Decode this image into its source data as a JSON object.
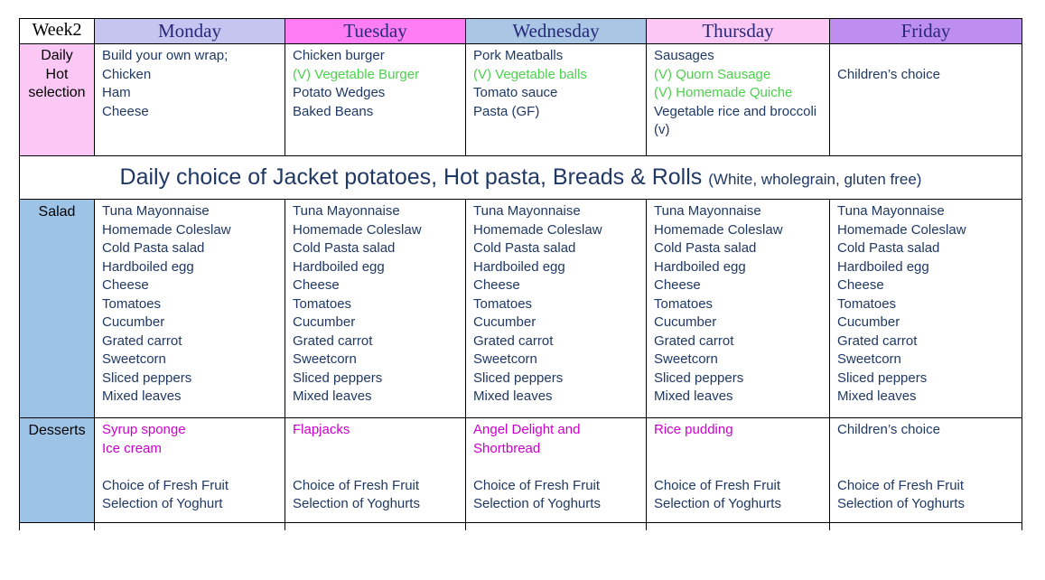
{
  "palette": {
    "border": "#000000",
    "header_text": "#28287a",
    "body_navy": "#1f3864",
    "veg_green": "#4ed14e",
    "dessert_magenta": "#cc00cc",
    "week_bg": "#ffffff",
    "hot_label_bg": "#fbc8f5",
    "side_label_bg": "#9dc3e6"
  },
  "header": {
    "week_label": "Week2",
    "days": [
      {
        "label": "Monday",
        "bg": "#c5c5f0"
      },
      {
        "label": "Tuesday",
        "bg": "#ff7df2"
      },
      {
        "label": "Wednesday",
        "bg": "#a9c7e5"
      },
      {
        "label": "Thursday",
        "bg": "#fbc8f5"
      },
      {
        "label": "Friday",
        "bg": "#bd8ef0"
      }
    ]
  },
  "rows": {
    "hot": {
      "label_lines": [
        "Daily",
        "Hot",
        "selection"
      ],
      "cells": [
        {
          "lines": [
            {
              "text": "Build your own wrap;",
              "color": "navy"
            },
            {
              "text": "Chicken",
              "color": "navy"
            },
            {
              "text": "Ham",
              "color": "navy"
            },
            {
              "text": "Cheese",
              "color": "navy"
            }
          ]
        },
        {
          "lines": [
            {
              "text": "Chicken burger",
              "color": "navy"
            },
            {
              "text": "(V) Vegetable Burger",
              "color": "green"
            },
            {
              "text": "Potato Wedges",
              "color": "navy"
            },
            {
              "text": "Baked Beans",
              "color": "navy"
            }
          ]
        },
        {
          "lines": [
            {
              "text": "Pork Meatballs",
              "color": "navy"
            },
            {
              "text": "(V) Vegetable balls",
              "color": "green"
            },
            {
              "text": "Tomato sauce",
              "color": "navy"
            },
            {
              "text": "Pasta (GF)",
              "color": "navy"
            }
          ]
        },
        {
          "lines": [
            {
              "text": "Sausages",
              "color": "navy"
            },
            {
              "text": "(V) Quorn Sausage",
              "color": "green"
            },
            {
              "text": "(V) Homemade Quiche",
              "color": "green"
            },
            {
              "text": "Vegetable rice and broccoli (v)",
              "color": "navy"
            }
          ]
        },
        {
          "lines": [
            {
              "text": "",
              "color": "navy"
            },
            {
              "text": "Children’s choice",
              "color": "navy"
            }
          ]
        }
      ]
    },
    "banner": {
      "main": "Daily choice of Jacket potatoes, Hot pasta, Breads & Rolls ",
      "note": "(White, wholegrain, gluten free)"
    },
    "salad": {
      "label": "Salad",
      "items": [
        "Tuna Mayonnaise",
        "Homemade Coleslaw",
        "Cold Pasta salad",
        "Hardboiled egg",
        "Cheese",
        "Tomatoes",
        "Cucumber",
        "Grated carrot",
        "Sweetcorn",
        "Sliced peppers",
        "Mixed leaves"
      ]
    },
    "desserts": {
      "label": "Desserts",
      "cells": [
        {
          "lines": [
            {
              "text": "Syrup sponge",
              "color": "magenta"
            },
            {
              "text": "Ice cream",
              "color": "magenta"
            },
            {
              "text": "",
              "color": "navy"
            },
            {
              "text": "Choice of Fresh Fruit",
              "color": "navy"
            },
            {
              "text": "Selection of Yoghurt",
              "color": "navy"
            }
          ]
        },
        {
          "lines": [
            {
              "text": "Flapjacks",
              "color": "magenta"
            },
            {
              "text": "",
              "color": "navy"
            },
            {
              "text": "",
              "color": "navy"
            },
            {
              "text": "Choice of Fresh Fruit",
              "color": "navy"
            },
            {
              "text": "Selection of Yoghurts",
              "color": "navy"
            }
          ]
        },
        {
          "lines": [
            {
              "text": "Angel Delight and Shortbread",
              "color": "magenta"
            },
            {
              "text": "",
              "color": "navy"
            },
            {
              "text": "Choice of Fresh Fruit",
              "color": "navy"
            },
            {
              "text": "Selection of Yoghurts",
              "color": "navy"
            }
          ]
        },
        {
          "lines": [
            {
              "text": "Rice pudding",
              "color": "magenta"
            },
            {
              "text": "",
              "color": "navy"
            },
            {
              "text": "",
              "color": "navy"
            },
            {
              "text": "Choice of Fresh Fruit",
              "color": "navy"
            },
            {
              "text": "Selection of Yoghurts",
              "color": "navy"
            }
          ]
        },
        {
          "lines": [
            {
              "text": "Children’s choice",
              "color": "navy"
            },
            {
              "text": "",
              "color": "navy"
            },
            {
              "text": "",
              "color": "navy"
            },
            {
              "text": "Choice of Fresh Fruit",
              "color": "navy"
            },
            {
              "text": "Selection of Yoghurts",
              "color": "navy"
            }
          ]
        }
      ]
    }
  }
}
